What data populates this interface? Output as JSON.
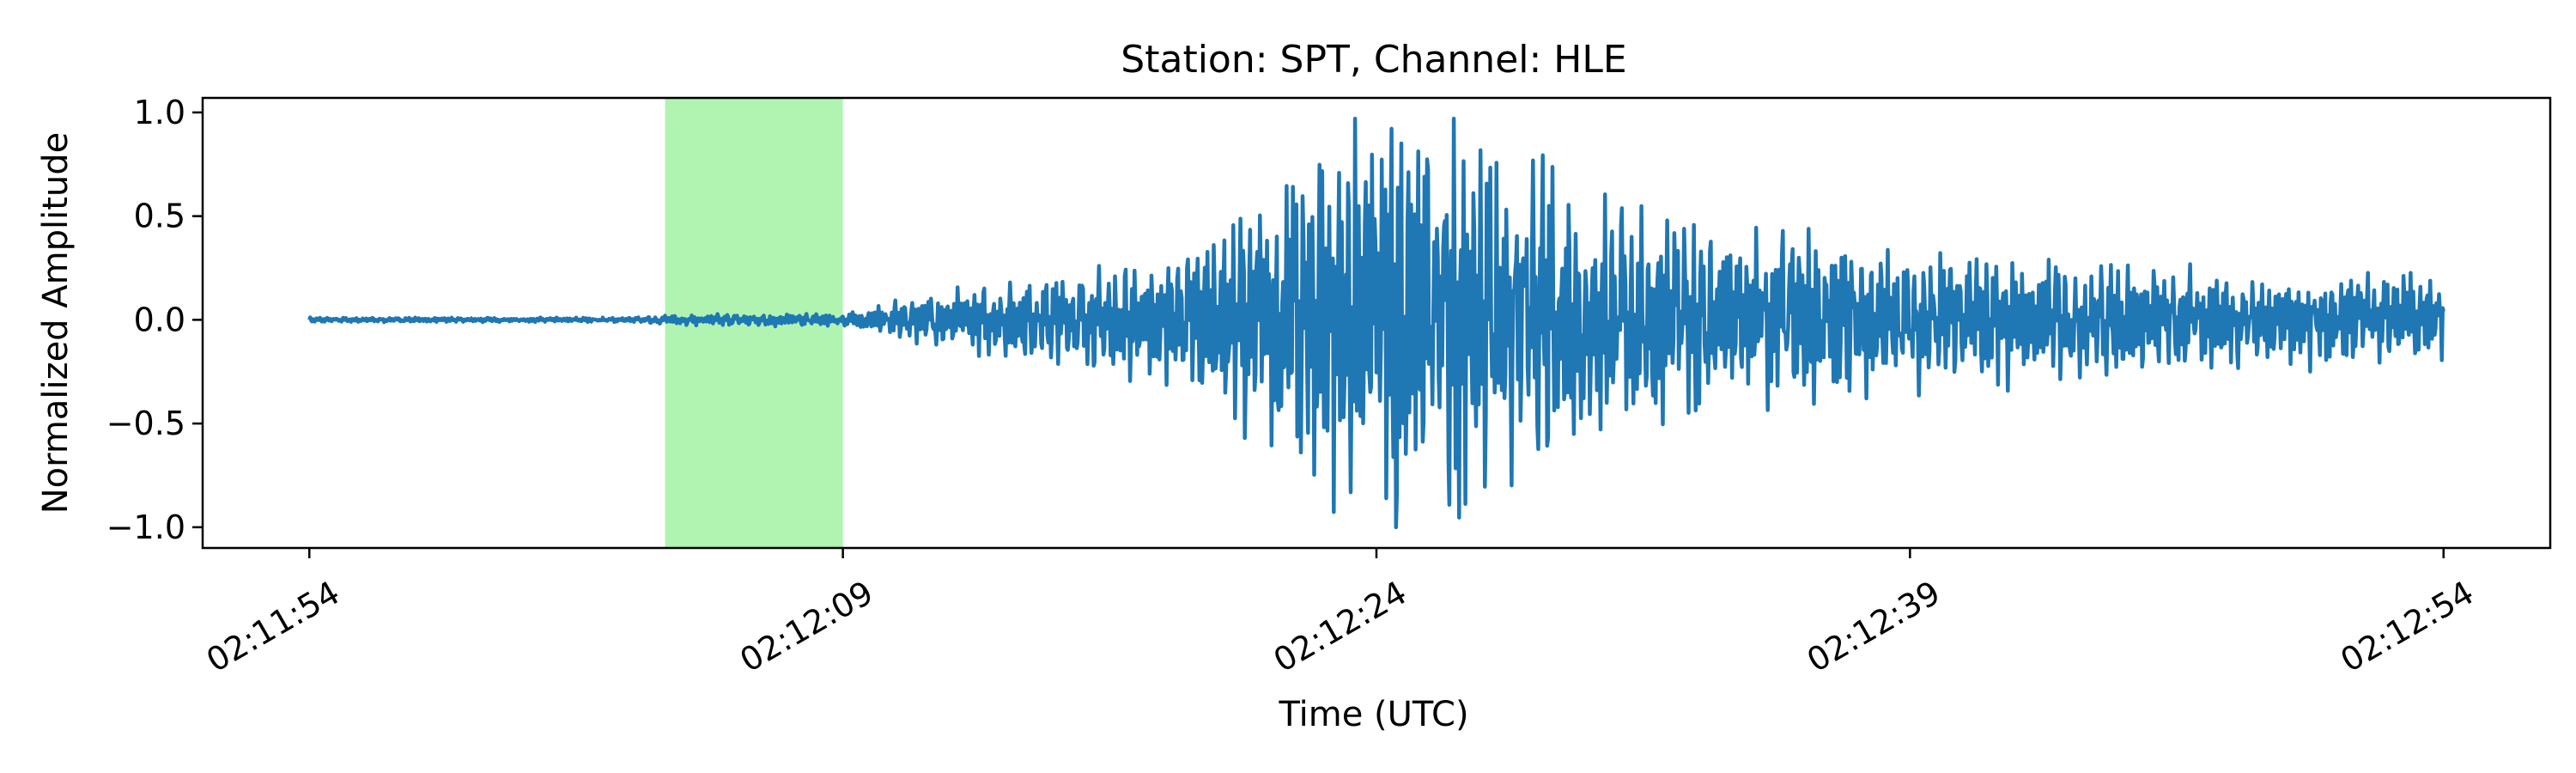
{
  "chart_data": {
    "type": "line",
    "title": "Station: SPT, Channel: HLE",
    "xlabel": "Time (UTC)",
    "ylabel": "Normalized Amplitude",
    "x_ticks": [
      "02:11:54",
      "02:12:09",
      "02:12:24",
      "02:12:39",
      "02:12:54"
    ],
    "x_start": "02:11:54",
    "x_end": "02:12:54",
    "xlim": [
      "02:11:51",
      "02:12:57"
    ],
    "y_ticks": [
      1.0,
      0.5,
      0.0,
      -0.5,
      -1.0
    ],
    "y_tick_labels": [
      "1.0",
      "0.5",
      "0.0",
      "−0.5",
      "−1.0"
    ],
    "ylim": [
      -1.1,
      1.07
    ],
    "grid": false,
    "highlight_span": {
      "start": "02:12:04",
      "end": "02:12:09",
      "color": "#90ee90"
    },
    "series_color": "#1f77b4",
    "waveform_envelope": {
      "times": [
        "02:11:54",
        "02:12:03",
        "02:12:04",
        "02:12:09",
        "02:12:12",
        "02:12:16",
        "02:12:19",
        "02:12:21",
        "02:12:23",
        "02:12:24",
        "02:12:26",
        "02:12:30",
        "02:12:33",
        "02:12:38",
        "02:12:43",
        "02:12:48",
        "02:12:54"
      ],
      "amplitude": [
        0.01,
        0.01,
        0.02,
        0.03,
        0.12,
        0.2,
        0.32,
        0.6,
        0.85,
        0.95,
        0.85,
        0.55,
        0.45,
        0.32,
        0.25,
        0.2,
        0.2
      ]
    }
  }
}
